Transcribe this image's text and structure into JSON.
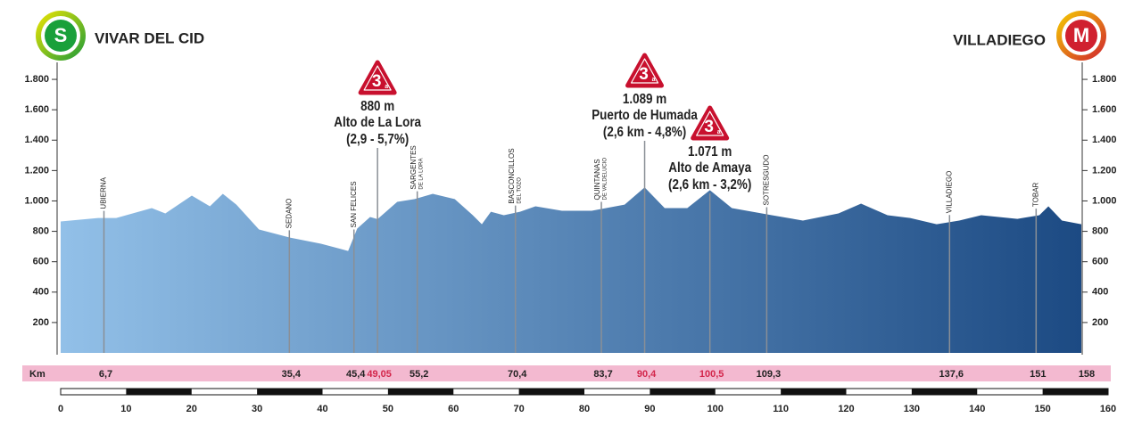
{
  "start": {
    "badge": "S",
    "name": "VIVAR DEL CID"
  },
  "finish": {
    "badge": "M",
    "name": "VILLADIEGO"
  },
  "chart_data": {
    "type": "area",
    "x": [
      0,
      5.8,
      8.6,
      14.1,
      16.2,
      20.3,
      23.1,
      25.1,
      27.2,
      30.7,
      35.5,
      40.3,
      44.5,
      45.9,
      47.9,
      49.05,
      52.1,
      54.8,
      57.6,
      61.0,
      63.8,
      65.2,
      66.6,
      68.6,
      71.1,
      73.5,
      77.6,
      82.2,
      87.3,
      90.4,
      93.5,
      97.0,
      100.5,
      103.9,
      110.1,
      114.9,
      120.4,
      123.9,
      128.0,
      131.5,
      135.6,
      139.1,
      142.5,
      148.1,
      151.5,
      152.9,
      155.0,
      158
    ],
    "values": [
      865,
      888,
      888,
      953,
      918,
      1035,
      965,
      1047,
      976,
      812,
      759,
      718,
      671,
      818,
      894,
      880,
      994,
      1012,
      1047,
      1012,
      906,
      847,
      929,
      906,
      929,
      965,
      935,
      935,
      976,
      1089,
      953,
      953,
      1071,
      953,
      906,
      871,
      918,
      982,
      906,
      888,
      847,
      871,
      906,
      882,
      906,
      965,
      871,
      847
    ],
    "xlim": [
      0,
      158
    ],
    "ylim": [
      0,
      1900
    ],
    "yticks": [
      200,
      400,
      600,
      800,
      {
        "value": 1000,
        "label": "1.000"
      },
      {
        "value": 1200,
        "label": "1.200"
      },
      {
        "value": 1400,
        "label": "1.400"
      },
      {
        "value": 1600,
        "label": "1.600"
      },
      {
        "value": 1800,
        "label": "1.800"
      }
    ],
    "color_start": "#92c0e8",
    "color_end": "#1c4a83",
    "km_label": "Km",
    "highlight_color": "#d3264b",
    "waypoints": [
      {
        "km": 6.7,
        "label": "6,7",
        "name": [
          "UBIERNA"
        ]
      },
      {
        "km": 35.4,
        "label": "35,4",
        "name": [
          "SEDANO"
        ]
      },
      {
        "km": 45.4,
        "label": "45,4",
        "name": [
          "SAN FELICES"
        ]
      },
      {
        "km": 49.05,
        "label": "49,05",
        "highlight": true
      },
      {
        "km": 55.2,
        "label": "55,2",
        "name": [
          "SARGENTES",
          "DE LA LORA"
        ]
      },
      {
        "km": 70.4,
        "label": "70,4",
        "name": [
          "BASCONCILLOS",
          "DEL TOZO"
        ]
      },
      {
        "km": 83.7,
        "label": "83,7",
        "name": [
          "QUINTANAS",
          "DE VALDELUCIO"
        ]
      },
      {
        "km": 90.4,
        "label": "90,4",
        "highlight": true
      },
      {
        "km": 100.5,
        "label": "100,5",
        "highlight": true
      },
      {
        "km": 109.3,
        "label": "109,3",
        "name": [
          "SOTRESGUDO"
        ]
      },
      {
        "km": 137.6,
        "label": "137,6",
        "name": [
          "VILLADIEGO"
        ]
      },
      {
        "km": 151,
        "name": [
          "TOBAR"
        ]
      },
      {
        "km": 158
      }
    ],
    "climbs": [
      {
        "km": 49.05,
        "category": "3",
        "category_suffix": "a",
        "elevation_label": "880 m",
        "name": "Alto de La Lora",
        "detail": "(2,9 - 5,7%)"
      },
      {
        "km": 90.4,
        "category": "3",
        "category_suffix": "a",
        "elevation_label": "1.089 m",
        "name": "Puerto de Humada",
        "detail": "(2,6 km - 4,8%)"
      },
      {
        "km": 100.5,
        "category": "3",
        "category_suffix": "a",
        "elevation_label": "1.071 m",
        "name": "Alto de Amaya",
        "detail": "(2,6 km - 3,2%)"
      }
    ],
    "scale": {
      "xlim": [
        0,
        160
      ],
      "xticks": [
        0,
        10,
        20,
        30,
        40,
        50,
        60,
        70,
        80,
        90,
        100,
        110,
        120,
        130,
        140,
        150,
        160
      ]
    }
  }
}
